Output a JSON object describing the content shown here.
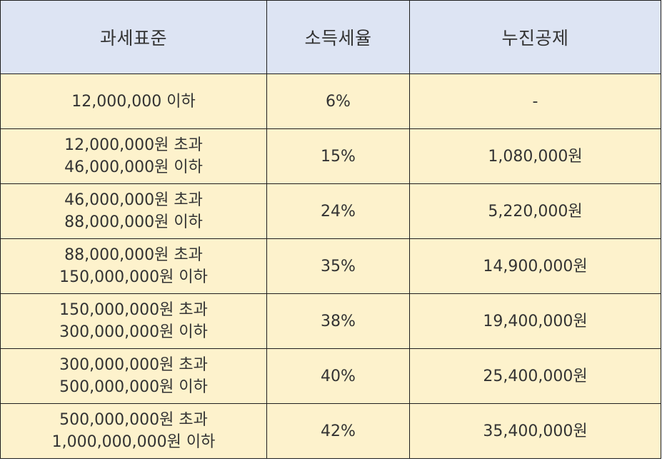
{
  "colors": {
    "header_bg": "#dde4f3",
    "row_bg": "#fdf2cc",
    "border": "#1e1e1e",
    "text": "#333333"
  },
  "table": {
    "headers": [
      "과세표준",
      "소득세율",
      "누진공제"
    ],
    "rows": [
      {
        "bracket": [
          "12,000,000 이하"
        ],
        "rate": "6%",
        "deduction": "-"
      },
      {
        "bracket": [
          "12,000,000원 초과",
          "46,000,000원 이하"
        ],
        "rate": "15%",
        "deduction": "1,080,000원"
      },
      {
        "bracket": [
          "46,000,000원 초과",
          "88,000,000원 이하"
        ],
        "rate": "24%",
        "deduction": "5,220,000원"
      },
      {
        "bracket": [
          "88,000,000원 초과",
          "150,000,000원 이하"
        ],
        "rate": "35%",
        "deduction": "14,900,000원"
      },
      {
        "bracket": [
          "150,000,000원 초과",
          "300,000,000원 이하"
        ],
        "rate": "38%",
        "deduction": "19,400,000원"
      },
      {
        "bracket": [
          "300,000,000원 초과",
          "500,000,000원 이하"
        ],
        "rate": "40%",
        "deduction": "25,400,000원"
      },
      {
        "bracket": [
          "500,000,000원 초과",
          "1,000,000,000원 이하"
        ],
        "rate": "42%",
        "deduction": "35,400,000원"
      }
    ]
  }
}
